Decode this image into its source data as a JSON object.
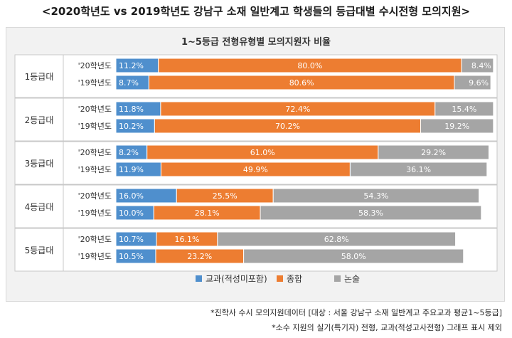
{
  "page_title": "<2020학년도 vs 2019학년도 강남구 소재 일반계고 학생들의 등급대별 수시전형 모의지원>",
  "footnotes": [
    "*진학사 수시 모의지원데이터 [대상 : 서울 강남구 소재 일반계고 주요교과 평균1~5등급]",
    "*소수 지원의 실기(특기자) 전형, 교과(적성고사전형) 그래프 표시 제외"
  ],
  "chart_data": {
    "type": "bar",
    "orientation": "horizontal",
    "stacked": true,
    "percent_stacked": true,
    "title": "1~5등급 전형유형별 모의지원자 비율",
    "xlim": [
      0,
      100
    ],
    "groups": [
      "1등급대",
      "2등급대",
      "3등급대",
      "4등급대",
      "5등급대"
    ],
    "categories": [
      "'20학년도",
      "'19학년도"
    ],
    "series": [
      {
        "name": "교과(적성미포함)",
        "color": "#4f8fcd",
        "values": [
          [
            11.2,
            8.7
          ],
          [
            11.8,
            10.2
          ],
          [
            8.2,
            11.9
          ],
          [
            16.0,
            10.0
          ],
          [
            10.7,
            10.5
          ]
        ],
        "labels": [
          [
            "11.2%",
            "8.7%"
          ],
          [
            "11.8%",
            "10.2%"
          ],
          [
            "8.2%",
            "11.9%"
          ],
          [
            "16.0%",
            "10.0%"
          ],
          [
            "10.7%",
            "10.5%"
          ]
        ]
      },
      {
        "name": "종합",
        "color": "#ed7d31",
        "values": [
          [
            80.0,
            80.6
          ],
          [
            72.4,
            70.2
          ],
          [
            61.0,
            49.9
          ],
          [
            25.5,
            28.1
          ],
          [
            16.1,
            23.2
          ]
        ],
        "labels": [
          [
            "80.0%",
            "80.6%"
          ],
          [
            "72.4%",
            "70.2%"
          ],
          [
            "61.0%",
            "49.9%"
          ],
          [
            "25.5%",
            "28.1%"
          ],
          [
            "16.1%",
            "23.2%"
          ]
        ]
      },
      {
        "name": "논술",
        "color": "#a5a5a5",
        "values": [
          [
            8.4,
            9.6
          ],
          [
            15.4,
            19.2
          ],
          [
            29.2,
            36.1
          ],
          [
            54.3,
            58.3
          ],
          [
            62.8,
            58.0
          ]
        ],
        "labels": [
          [
            "8.4%",
            "9.6%"
          ],
          [
            "15.4%",
            "19.2%"
          ],
          [
            "29.2%",
            "36.1%"
          ],
          [
            "54.3%",
            "58.3%"
          ],
          [
            "62.8%",
            "58.0%"
          ]
        ]
      }
    ],
    "legend_position": "bottom",
    "grid": false
  }
}
